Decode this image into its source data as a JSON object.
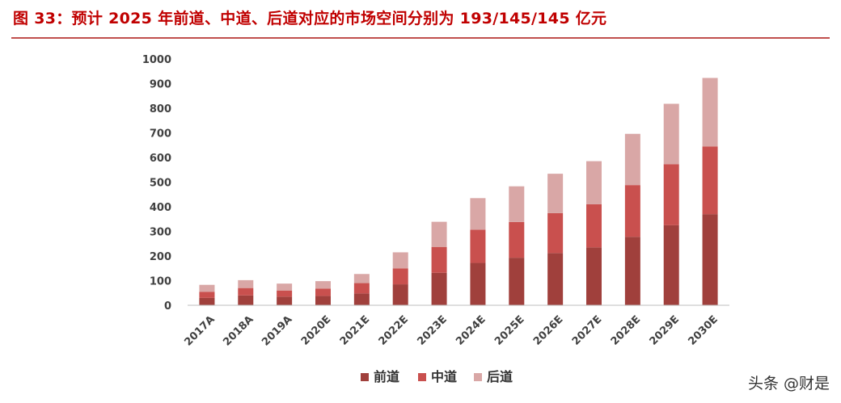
{
  "figure": {
    "title": "图 33：预计 2025 年前道、中道、后道对应的市场空间分别为 193/145/145 亿元"
  },
  "watermark": "头条 @财是",
  "colors": {
    "title": "#c00000",
    "rule": "#c0504d",
    "series": [
      "#a0403c",
      "#c9504e",
      "#d9a7a6"
    ]
  },
  "chart_data": {
    "type": "bar",
    "stacked": true,
    "categories": [
      "2017A",
      "2018A",
      "2019A",
      "2020E",
      "2021E",
      "2022E",
      "2023E",
      "2024E",
      "2025E",
      "2026E",
      "2027E",
      "2028E",
      "2029E",
      "2030E"
    ],
    "series": [
      {
        "name": "前道",
        "values": [
          30,
          40,
          35,
          38,
          48,
          85,
          132,
          172,
          193,
          212,
          235,
          278,
          325,
          370
        ]
      },
      {
        "name": "中道",
        "values": [
          25,
          30,
          25,
          30,
          42,
          65,
          105,
          135,
          145,
          162,
          175,
          210,
          248,
          275
        ]
      },
      {
        "name": "后道",
        "values": [
          28,
          32,
          28,
          30,
          37,
          65,
          102,
          128,
          145,
          160,
          175,
          208,
          245,
          278
        ]
      }
    ],
    "ylim": [
      0,
      1000
    ],
    "yticks": [
      0,
      100,
      200,
      300,
      400,
      500,
      600,
      700,
      800,
      900,
      1000
    ],
    "grid": false,
    "legend_position": "bottom"
  }
}
